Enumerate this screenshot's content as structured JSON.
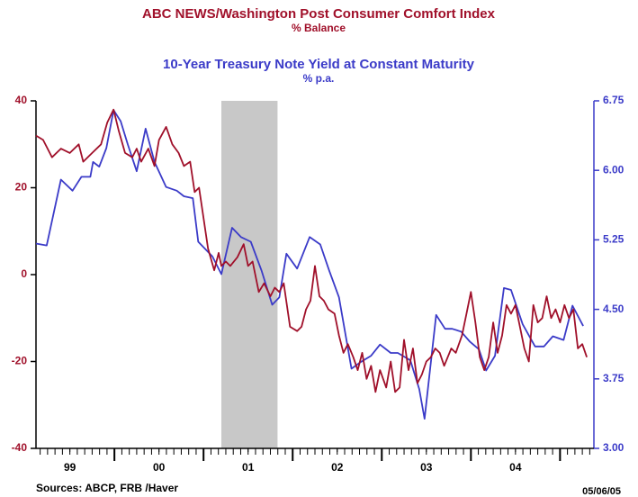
{
  "chart_data": {
    "type": "line",
    "title": "ABC NEWS/Washington Post Consumer Comfort Index",
    "subtitle": "% Balance",
    "title2": "10-Year Treasury Note Yield at Constant Maturity",
    "subtitle2": "% p.a.",
    "source": "Sources:  ABCP, FRB /Haver",
    "date_note": "05/06/05",
    "xlim": [
      1999.12,
      2005.38
    ],
    "xticks": [
      {
        "value": 1999.5,
        "label": "99"
      },
      {
        "value": 2000.5,
        "label": "00"
      },
      {
        "value": 2001.5,
        "label": "01"
      },
      {
        "value": 2002.5,
        "label": "02"
      },
      {
        "value": 2003.5,
        "label": "03"
      },
      {
        "value": 2004.5,
        "label": "04"
      }
    ],
    "ylim": [
      -40,
      40
    ],
    "yticks": [
      -40,
      -20,
      0,
      20,
      40
    ],
    "y2lim": [
      3,
      6.75
    ],
    "y2ticks": [
      {
        "value": 3,
        "label": "3.00"
      },
      {
        "value": 3.75,
        "label": "3.75"
      },
      {
        "value": 4.5,
        "label": "4.50"
      },
      {
        "value": 5.25,
        "label": "5.25"
      },
      {
        "value": 6,
        "label": "6.00"
      },
      {
        "value": 6.75,
        "label": "6.75"
      }
    ],
    "shade": [
      2001.2,
      2001.83
    ],
    "shade_color": "#c8c8c8",
    "series": [
      {
        "name": "ABC NEWS/Washington Post Consumer Comfort Index",
        "color": "#a0102a",
        "x": [
          1999.12,
          1999.2,
          1999.3,
          1999.4,
          1999.5,
          1999.6,
          1999.65,
          1999.75,
          1999.85,
          1999.92,
          1999.99,
          2000.05,
          2000.12,
          2000.2,
          2000.25,
          2000.3,
          2000.38,
          2000.45,
          2000.5,
          2000.58,
          2000.65,
          2000.72,
          2000.78,
          2000.85,
          2000.9,
          2000.95,
          2001.0,
          2001.05,
          2001.12,
          2001.17,
          2001.2,
          2001.25,
          2001.3,
          2001.38,
          2001.45,
          2001.5,
          2001.55,
          2001.62,
          2001.68,
          2001.75,
          2001.8,
          2001.85,
          2001.9,
          2001.97,
          2002.05,
          2002.1,
          2002.15,
          2002.2,
          2002.25,
          2002.3,
          2002.35,
          2002.4,
          2002.47,
          2002.52,
          2002.57,
          2002.62,
          2002.68,
          2002.73,
          2002.78,
          2002.83,
          2002.88,
          2002.93,
          2002.98,
          2003.05,
          2003.1,
          2003.15,
          2003.2,
          2003.25,
          2003.3,
          2003.35,
          2003.4,
          2003.45,
          2003.5,
          2003.55,
          2003.6,
          2003.65,
          2003.7,
          2003.78,
          2003.83,
          2003.9,
          2003.95,
          2004.0,
          2004.05,
          2004.1,
          2004.15,
          2004.2,
          2004.25,
          2004.3,
          2004.35,
          2004.4,
          2004.45,
          2004.5,
          2004.55,
          2004.6,
          2004.65,
          2004.7,
          2004.75,
          2004.8,
          2004.85,
          2004.9,
          2004.95,
          2005.0,
          2005.05,
          2005.1,
          2005.15,
          2005.2,
          2005.25,
          2005.3
        ],
        "values": [
          32,
          31,
          27,
          29,
          28,
          30,
          26,
          28,
          30,
          35,
          38,
          33,
          28,
          27,
          29,
          26,
          29,
          25,
          31,
          34,
          30,
          28,
          25,
          26,
          19,
          20,
          13,
          6,
          1,
          5,
          2,
          3,
          2,
          4,
          7,
          2,
          3,
          -4,
          -2,
          -5,
          -3,
          -4,
          -2,
          -12,
          -13,
          -12,
          -8,
          -6,
          2,
          -5,
          -6,
          -8,
          -9,
          -14,
          -18,
          -16,
          -19,
          -22,
          -18,
          -24,
          -21,
          -27,
          -22,
          -26,
          -20,
          -27,
          -26,
          -15,
          -22,
          -17,
          -25,
          -23,
          -20,
          -19,
          -17,
          -18,
          -21,
          -17,
          -18,
          -14,
          -9,
          -4,
          -11,
          -19,
          -22,
          -19,
          -11,
          -18,
          -14,
          -7,
          -9,
          -7,
          -12,
          -17,
          -20,
          -7,
          -11,
          -10,
          -5,
          -10,
          -8,
          -11,
          -7,
          -10,
          -8,
          -17,
          -16,
          -19
        ]
      },
      {
        "name": "10-Year Treasury Note Yield at Constant Maturity",
        "color": "#3b3bc8",
        "axis": "y2",
        "x": [
          1999.12,
          1999.24,
          1999.4,
          1999.53,
          1999.63,
          1999.73,
          1999.76,
          1999.83,
          1999.91,
          1999.99,
          2000.07,
          2000.15,
          2000.25,
          2000.35,
          2000.45,
          2000.58,
          2000.7,
          2000.78,
          2000.88,
          2000.94,
          2001.1,
          2001.2,
          2001.32,
          2001.42,
          2001.53,
          2001.65,
          2001.77,
          2001.85,
          2001.93,
          2002.05,
          2002.19,
          2002.31,
          2002.41,
          2002.52,
          2002.66,
          2002.76,
          2002.88,
          2002.98,
          2003.1,
          2003.18,
          2003.32,
          2003.42,
          2003.48,
          2003.61,
          2003.71,
          2003.79,
          2003.89,
          2003.99,
          2004.09,
          2004.17,
          2004.27,
          2004.37,
          2004.45,
          2004.58,
          2004.72,
          2004.82,
          2004.92,
          2005.04,
          2005.14,
          2005.26
        ],
        "values": [
          5.21,
          5.19,
          5.9,
          5.78,
          5.93,
          5.93,
          6.09,
          6.04,
          6.24,
          6.65,
          6.53,
          6.28,
          5.99,
          6.45,
          6.09,
          5.82,
          5.78,
          5.72,
          5.7,
          5.23,
          5.07,
          4.88,
          5.38,
          5.28,
          5.23,
          4.92,
          4.55,
          4.63,
          5.1,
          4.94,
          5.28,
          5.2,
          4.92,
          4.63,
          3.86,
          3.93,
          4.0,
          4.12,
          4.03,
          4.03,
          3.95,
          3.64,
          3.32,
          4.44,
          4.29,
          4.29,
          4.26,
          4.15,
          4.07,
          3.84,
          4.0,
          4.73,
          4.71,
          4.34,
          4.1,
          4.1,
          4.21,
          4.17,
          4.54,
          4.32
        ]
      }
    ]
  }
}
